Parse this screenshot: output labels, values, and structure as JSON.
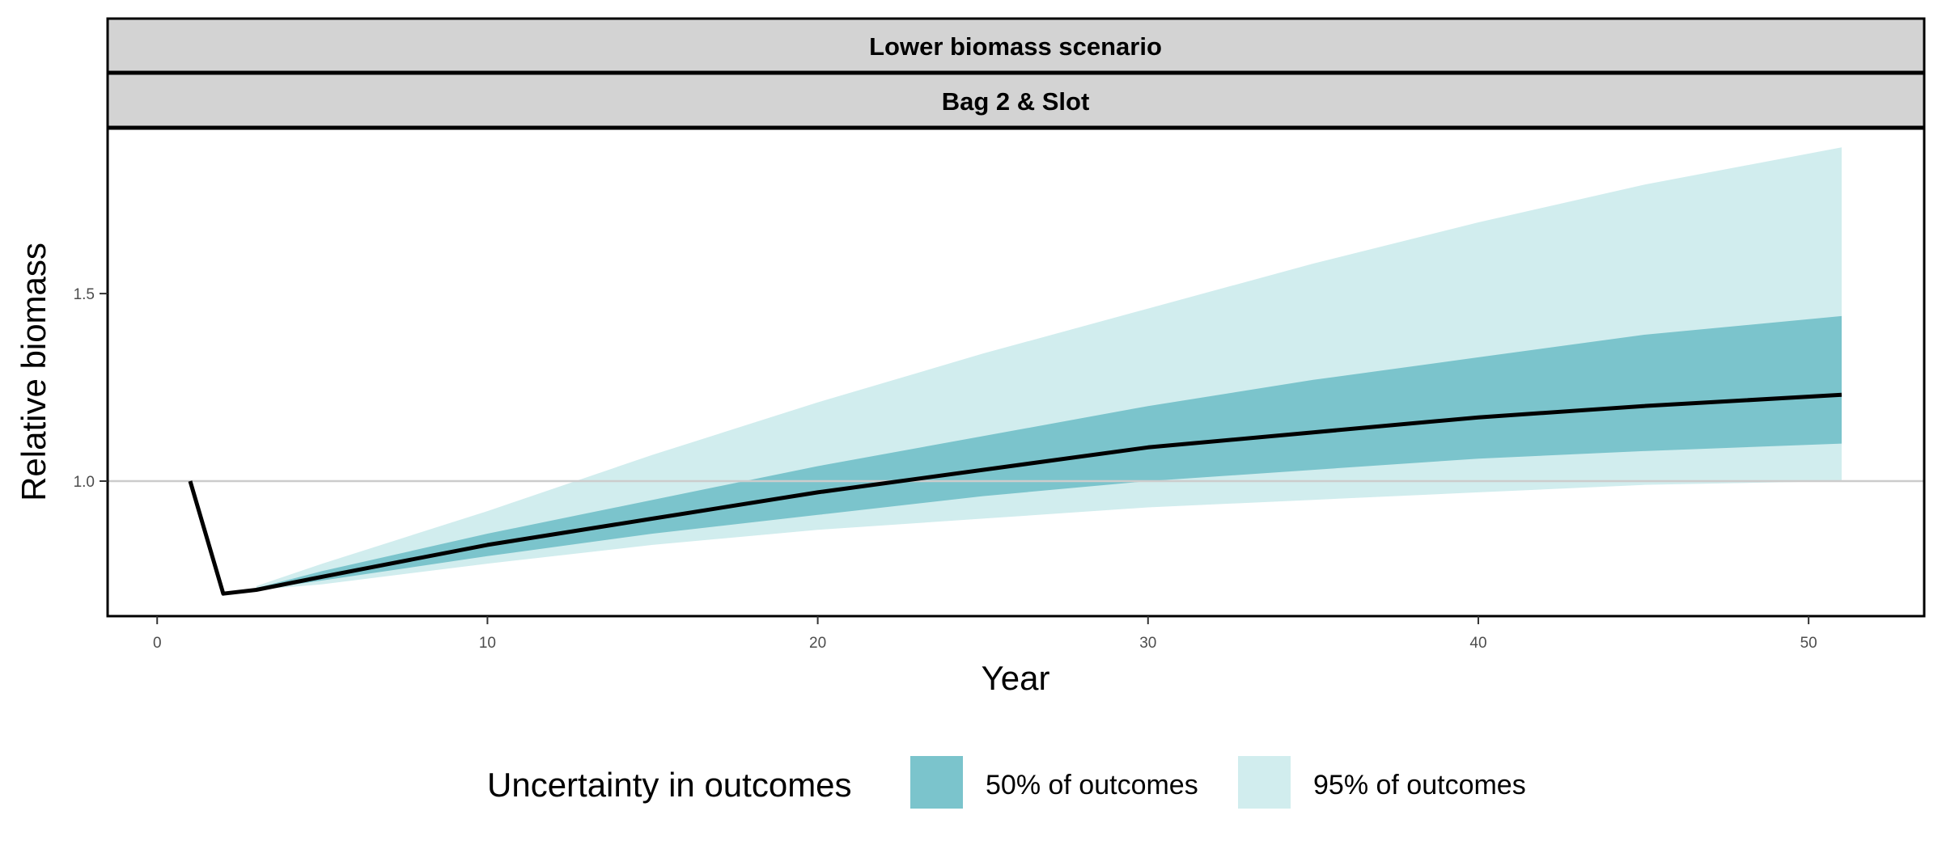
{
  "chart_data": {
    "type": "area",
    "facet_strips": [
      "Lower biomass scenario",
      "Bag 2 & Slot"
    ],
    "xlabel": "Year",
    "ylabel": "Relative biomass",
    "xlim": [
      -1.5,
      53.5
    ],
    "ylim": [
      0.64,
      1.94
    ],
    "x_ticks": [
      0,
      10,
      20,
      30,
      40,
      50
    ],
    "x_tick_labels": [
      "0",
      "10",
      "20",
      "30",
      "40",
      "50"
    ],
    "y_ticks": [
      1.0,
      1.5
    ],
    "y_tick_labels": [
      "1.0",
      "1.5"
    ],
    "reference_line_y": 1.0,
    "grid": false,
    "legend_position": "bottom",
    "legend": {
      "title": "Uncertainty in outcomes",
      "items": [
        {
          "label": "50% of outcomes",
          "color": "#7BC4CC"
        },
        {
          "label": "95% of outcomes",
          "color": "#D1EDEE"
        }
      ]
    },
    "median_color": "#000000",
    "x": [
      1,
      2,
      3,
      5,
      10,
      15,
      20,
      25,
      30,
      35,
      40,
      45,
      51
    ],
    "median": [
      1.0,
      0.7,
      0.71,
      0.745,
      0.83,
      0.9,
      0.97,
      1.03,
      1.09,
      1.13,
      1.17,
      1.2,
      1.23
    ],
    "band50_low": [
      null,
      null,
      0.71,
      0.735,
      0.8,
      0.86,
      0.91,
      0.96,
      1.0,
      1.03,
      1.06,
      1.08,
      1.1
    ],
    "band50_high": [
      null,
      null,
      0.715,
      0.76,
      0.86,
      0.95,
      1.04,
      1.12,
      1.2,
      1.27,
      1.33,
      1.39,
      1.44
    ],
    "band95_low": [
      null,
      null,
      0.71,
      0.725,
      0.78,
      0.83,
      0.87,
      0.9,
      0.93,
      0.95,
      0.97,
      0.99,
      1.0
    ],
    "band95_high": [
      null,
      null,
      0.72,
      0.78,
      0.92,
      1.07,
      1.21,
      1.34,
      1.46,
      1.58,
      1.69,
      1.79,
      1.89
    ]
  }
}
